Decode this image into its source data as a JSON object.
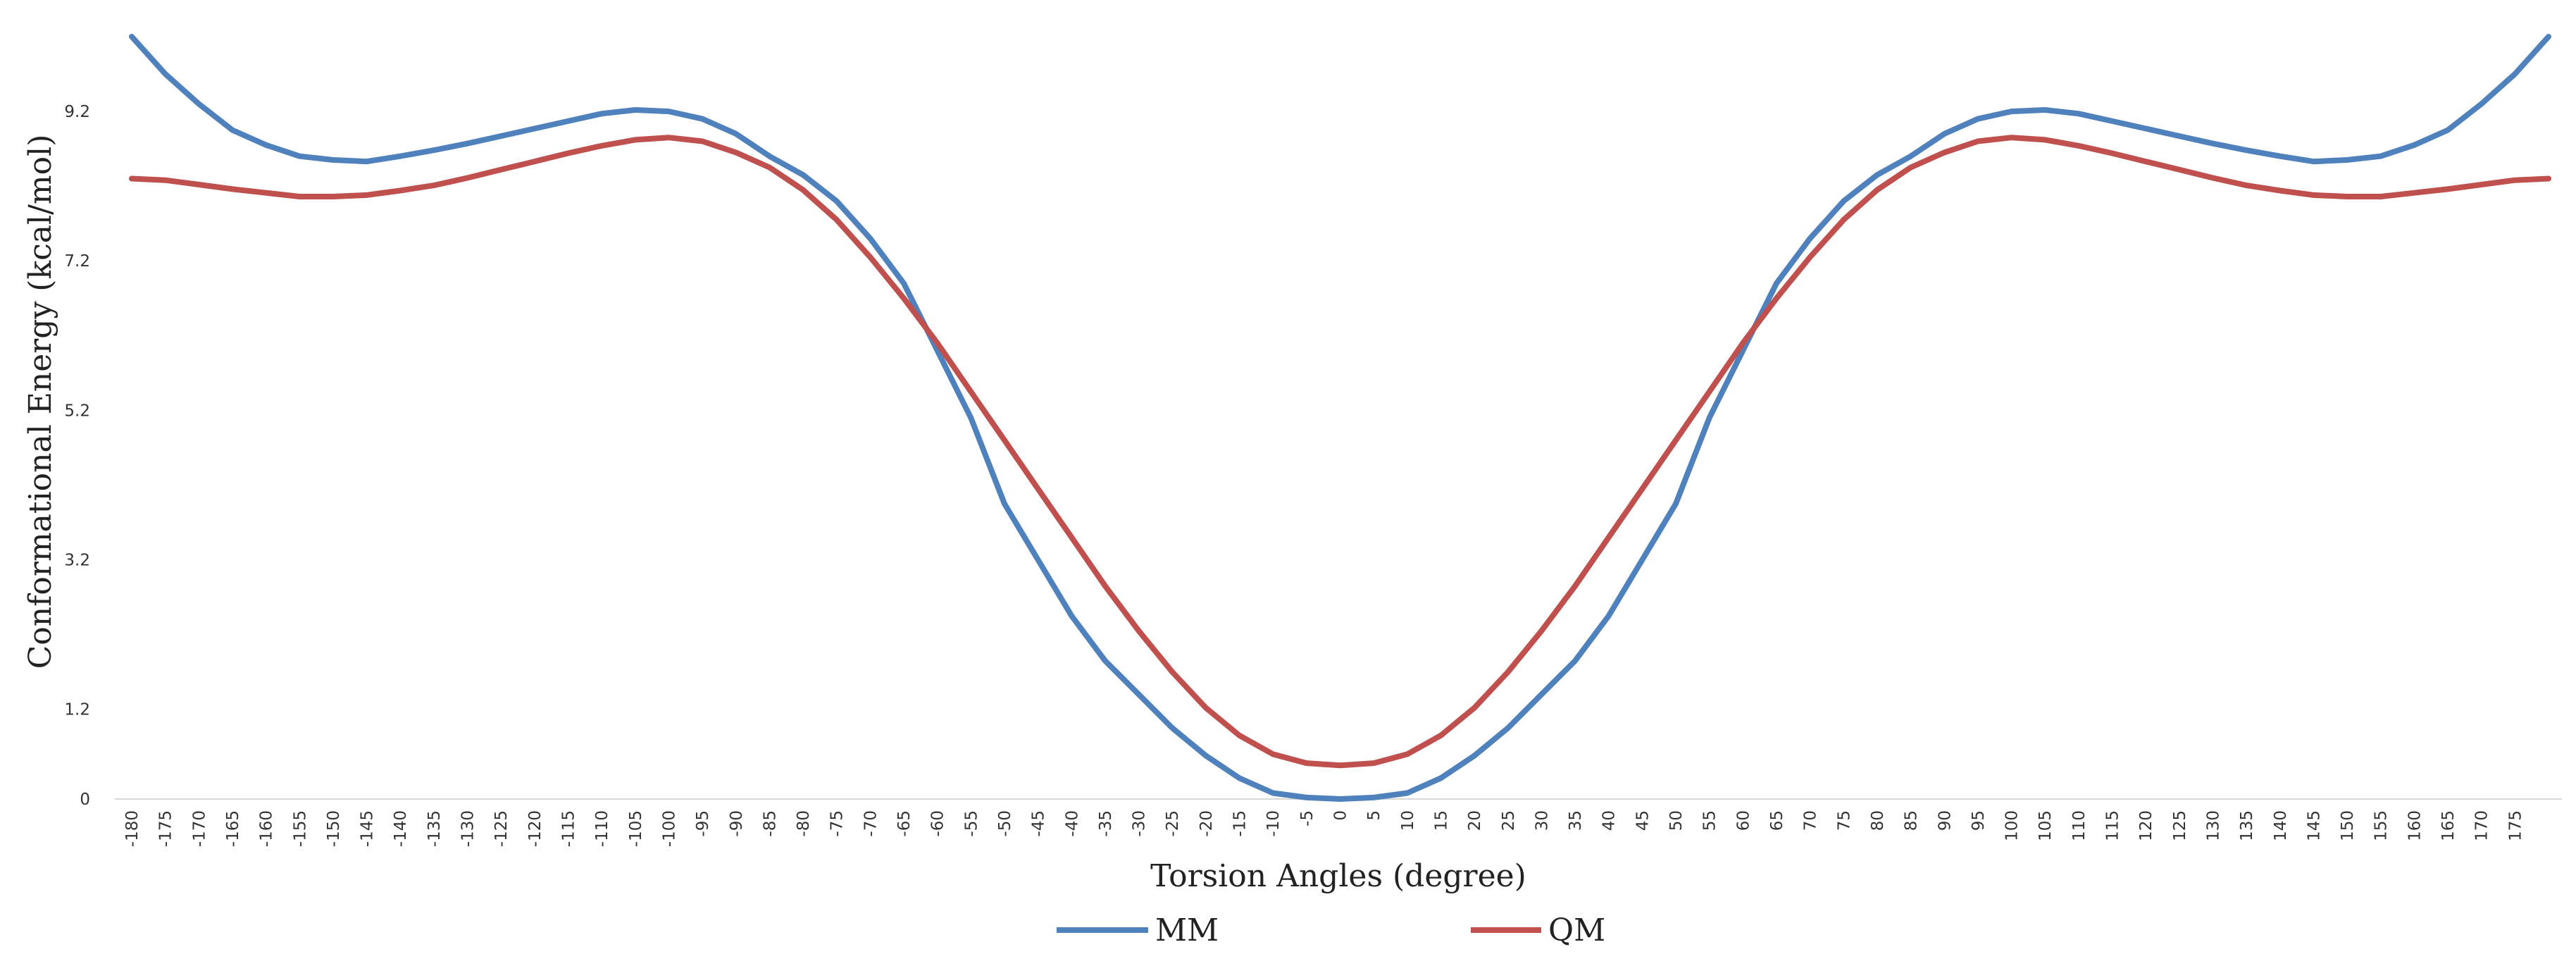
{
  "chart_data": {
    "type": "line",
    "xlabel": "Torsion Angles (degree)",
    "ylabel": "Conformational Energy (kcal/mol)",
    "ylim": [
      0,
      10.2
    ],
    "y_ticks": [
      "0",
      "1.2",
      "3.2",
      "5.2",
      "7.2",
      "9.2"
    ],
    "x": [
      -180,
      -175,
      -170,
      -165,
      -160,
      -155,
      -150,
      -145,
      -140,
      -135,
      -130,
      -125,
      -120,
      -115,
      -110,
      -105,
      -100,
      -95,
      -90,
      -85,
      -80,
      -75,
      -70,
      -65,
      -60,
      -55,
      -50,
      -45,
      -40,
      -35,
      -30,
      -25,
      -20,
      -15,
      -10,
      -5,
      0,
      5,
      10,
      15,
      20,
      25,
      30,
      35,
      40,
      45,
      50,
      55,
      60,
      65,
      70,
      75,
      80,
      85,
      90,
      95,
      100,
      105,
      110,
      115,
      120,
      125,
      130,
      135,
      140,
      145,
      150,
      155,
      160,
      165,
      170,
      175,
      180
    ],
    "x_tick_labels": [
      "-180",
      "-175",
      "-170",
      "-165",
      "-160",
      "-155",
      "-150",
      "-145",
      "-140",
      "-135",
      "-130",
      "-125",
      "-120",
      "-115",
      "-110",
      "-105",
      "-100",
      "-95",
      "-90",
      "-85",
      "-80",
      "-75",
      "-70",
      "-65",
      "-60",
      "-55",
      "-50",
      "-45",
      "-40",
      "-35",
      "-30",
      "-25",
      "-20",
      "-15",
      "-10",
      "-5",
      "0",
      "5",
      "10",
      "15",
      "20",
      "25",
      "30",
      "35",
      "40",
      "45",
      "50",
      "55",
      "60",
      "65",
      "70",
      "75",
      "80",
      "85",
      "90",
      "95",
      "100",
      "105",
      "110",
      "115",
      "120",
      "125",
      "130",
      "135",
      "140",
      "145",
      "150",
      "155",
      "160",
      "165",
      "170",
      "175"
    ],
    "grid": false,
    "legend_position": "bottom",
    "series": [
      {
        "name": "MM",
        "color": "#4F81BD",
        "values": [
          10.2,
          9.7,
          9.3,
          8.95,
          8.75,
          8.6,
          8.55,
          8.53,
          8.6,
          8.68,
          8.77,
          8.87,
          8.97,
          9.07,
          9.17,
          9.22,
          9.2,
          9.1,
          8.9,
          8.6,
          8.35,
          8.0,
          7.5,
          6.9,
          6.0,
          5.1,
          3.95,
          3.2,
          2.45,
          1.85,
          1.4,
          0.95,
          0.58,
          0.28,
          0.08,
          0.02,
          0.0,
          0.02,
          0.08,
          0.28,
          0.58,
          0.95,
          1.4,
          1.85,
          2.45,
          3.2,
          3.95,
          5.1,
          6.0,
          6.9,
          7.5,
          8.0,
          8.35,
          8.6,
          8.9,
          9.1,
          9.2,
          9.22,
          9.17,
          9.07,
          8.97,
          8.87,
          8.77,
          8.68,
          8.6,
          8.53,
          8.55,
          8.6,
          8.75,
          8.95,
          9.3,
          9.7,
          10.2
        ]
      },
      {
        "name": "QM",
        "color": "#C0504D",
        "values": [
          8.3,
          8.28,
          8.22,
          8.16,
          8.11,
          8.06,
          8.06,
          8.08,
          8.14,
          8.21,
          8.31,
          8.42,
          8.53,
          8.64,
          8.74,
          8.82,
          8.85,
          8.8,
          8.65,
          8.45,
          8.15,
          7.75,
          7.25,
          6.7,
          6.1,
          5.45,
          4.8,
          4.15,
          3.5,
          2.85,
          2.25,
          1.7,
          1.22,
          0.85,
          0.6,
          0.48,
          0.45,
          0.48,
          0.6,
          0.85,
          1.22,
          1.7,
          2.25,
          2.85,
          3.5,
          4.15,
          4.8,
          5.45,
          6.1,
          6.7,
          7.25,
          7.75,
          8.15,
          8.45,
          8.65,
          8.8,
          8.85,
          8.82,
          8.74,
          8.64,
          8.53,
          8.42,
          8.31,
          8.21,
          8.14,
          8.08,
          8.06,
          8.06,
          8.11,
          8.16,
          8.22,
          8.28,
          8.3
        ]
      }
    ]
  }
}
